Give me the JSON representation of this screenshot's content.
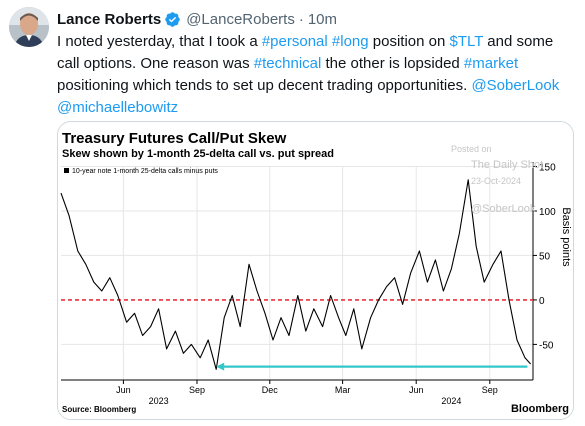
{
  "tweet": {
    "display_name": "Lance Roberts",
    "handle": "@LanceRoberts",
    "separator": "·",
    "time": "10m",
    "text_parts": [
      {
        "t": "I noted yesterday, that I took a ",
        "link": false
      },
      {
        "t": "#personal",
        "link": true
      },
      {
        "t": " ",
        "link": false
      },
      {
        "t": "#long",
        "link": true
      },
      {
        "t": " position on ",
        "link": false
      },
      {
        "t": "$TLT",
        "link": true
      },
      {
        "t": " and some call options. One reason was ",
        "link": false
      },
      {
        "t": "#technical",
        "link": true
      },
      {
        "t": " the other is lopsided ",
        "link": false
      },
      {
        "t": "#market",
        "link": true
      },
      {
        "t": " positioning which tends to set up decent trading opportunities. ",
        "link": false
      },
      {
        "t": "@SoberLook",
        "link": true
      },
      {
        "t": " ",
        "link": false
      },
      {
        "t": "@michaellebowitz",
        "link": true
      }
    ]
  },
  "chart": {
    "title": "Treasury Futures Call/Put Skew",
    "subtitle": "Skew shown by 1-month 25-delta call vs. put spread",
    "legend": "10-year note 1-month 25-delta calls minus puts",
    "ylabel": "Basis points",
    "source": "Source: Bloomberg",
    "brand": "Bloomberg",
    "watermark": [
      "Posted on",
      "The Daily Shot",
      "23-Oct-2024",
      "@SoberLook"
    ],
    "series_color": "#000000",
    "zero_line_color": "#e8323c",
    "arrow_color": "#33c7c9"
  },
  "chart_data": {
    "type": "line",
    "title": "Treasury Futures Call/Put Skew",
    "subtitle": "Skew shown by 1-month 25-delta call vs. put spread",
    "ylabel": "Basis points",
    "ylim": [
      -90,
      155
    ],
    "yticks": [
      150,
      100,
      50,
      0,
      -50
    ],
    "xlim": [
      "2023-03-15",
      "2024-10-25"
    ],
    "xticks": [
      {
        "label": "Jun",
        "date": "2023-06-01"
      },
      {
        "label": "Sep",
        "date": "2023-09-01"
      },
      {
        "label": "Dec",
        "date": "2023-12-01"
      },
      {
        "label": "Mar",
        "date": "2024-03-01"
      },
      {
        "label": "Jun",
        "date": "2024-06-01"
      },
      {
        "label": "Sep",
        "date": "2024-09-01"
      }
    ],
    "year_labels": [
      {
        "label": "2023",
        "date": "2023-07-15"
      },
      {
        "label": "2024",
        "date": "2024-07-15"
      }
    ],
    "grid": true,
    "legend_position": "top-left",
    "series": [
      {
        "name": "10-year note 1-month 25-delta calls minus puts",
        "x": [
          "2023-03-15",
          "2023-03-25",
          "2023-04-05",
          "2023-04-15",
          "2023-04-25",
          "2023-05-05",
          "2023-05-15",
          "2023-05-25",
          "2023-06-05",
          "2023-06-15",
          "2023-06-25",
          "2023-07-05",
          "2023-07-15",
          "2023-07-25",
          "2023-08-05",
          "2023-08-15",
          "2023-08-25",
          "2023-09-05",
          "2023-09-15",
          "2023-09-25",
          "2023-10-05",
          "2023-10-15",
          "2023-10-25",
          "2023-11-05",
          "2023-11-15",
          "2023-11-25",
          "2023-12-05",
          "2023-12-15",
          "2023-12-25",
          "2024-01-05",
          "2024-01-15",
          "2024-01-25",
          "2024-02-05",
          "2024-02-15",
          "2024-02-25",
          "2024-03-05",
          "2024-03-15",
          "2024-03-25",
          "2024-04-05",
          "2024-04-15",
          "2024-04-25",
          "2024-05-05",
          "2024-05-15",
          "2024-05-25",
          "2024-06-05",
          "2024-06-15",
          "2024-06-25",
          "2024-07-05",
          "2024-07-15",
          "2024-07-25",
          "2024-08-05",
          "2024-08-15",
          "2024-08-25",
          "2024-09-05",
          "2024-09-15",
          "2024-09-25",
          "2024-10-05",
          "2024-10-15",
          "2024-10-22"
        ],
        "values": [
          120,
          95,
          55,
          40,
          20,
          10,
          25,
          5,
          -25,
          -15,
          -40,
          -30,
          -10,
          -55,
          -35,
          -60,
          -50,
          -65,
          -45,
          -78,
          -20,
          5,
          -30,
          40,
          10,
          -15,
          -45,
          -20,
          -40,
          5,
          -35,
          -10,
          -30,
          5,
          -20,
          -40,
          -10,
          -55,
          -20,
          0,
          15,
          25,
          -5,
          30,
          55,
          20,
          45,
          10,
          35,
          75,
          135,
          60,
          20,
          40,
          55,
          0,
          -45,
          -65,
          -72
        ]
      }
    ],
    "annotations": [
      {
        "type": "zero-line",
        "y": 0,
        "style": "dashed red"
      },
      {
        "type": "arrow",
        "from": {
          "x": "2024-10-18",
          "y": -75
        },
        "to": {
          "x": "2023-09-25",
          "y": -75
        },
        "color": "cyan"
      }
    ]
  }
}
